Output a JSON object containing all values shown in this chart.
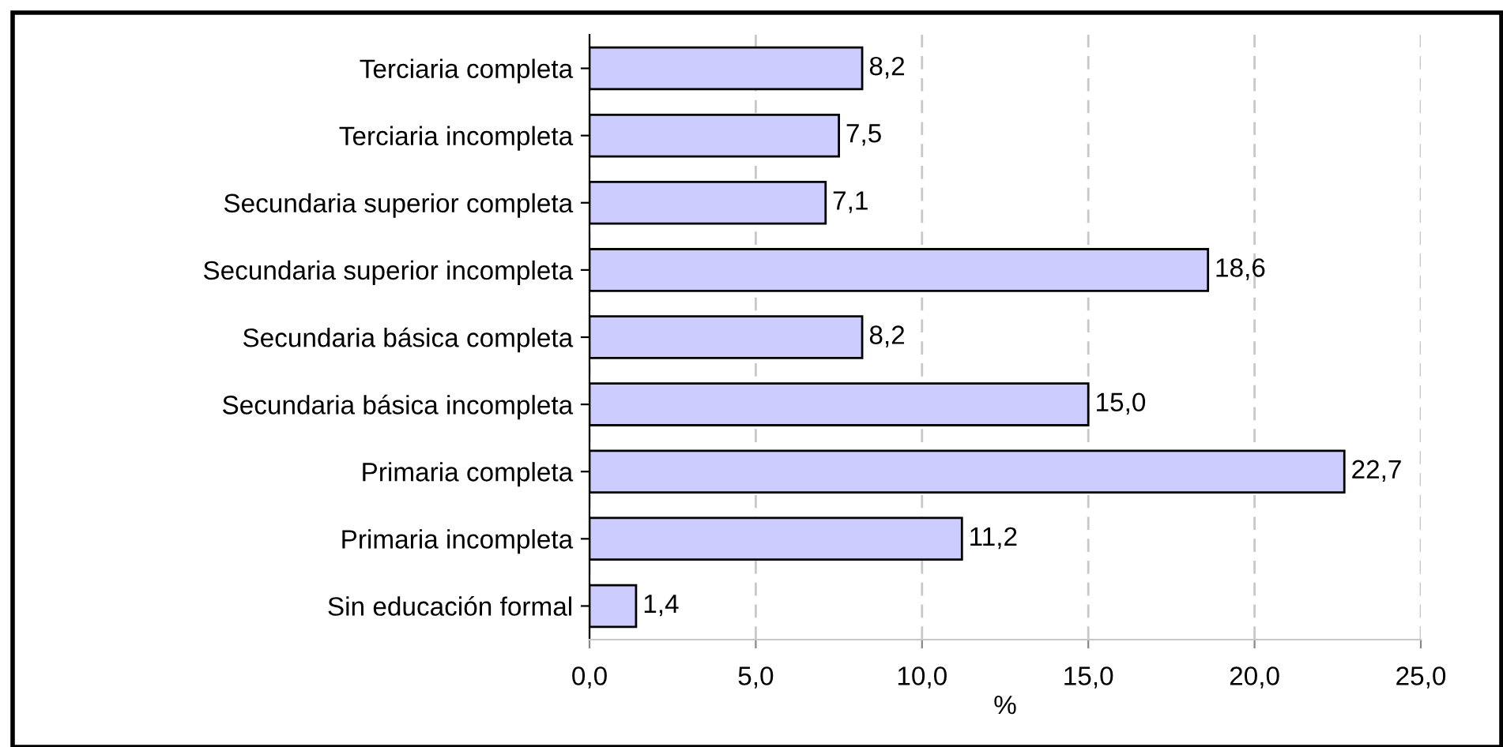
{
  "chart_data": {
    "type": "bar",
    "orientation": "horizontal",
    "xlabel": "%",
    "categories": [
      "Terciaria completa",
      "Terciaria incompleta",
      "Secundaria superior completa",
      "Secundaria superior incompleta",
      "Secundaria básica completa",
      "Secundaria básica incompleta",
      "Primaria completa",
      "Primaria incompleta",
      "Sin educación formal"
    ],
    "values": [
      8.2,
      7.5,
      7.1,
      18.6,
      8.2,
      15.0,
      22.7,
      11.2,
      1.4
    ],
    "value_labels": [
      "8,2",
      "7,5",
      "7,1",
      "18,6",
      "8,2",
      "15,0",
      "22,7",
      "11,2",
      "1,4"
    ],
    "color": "#ccccff",
    "xlim": [
      0,
      25
    ],
    "xticks": [
      {
        "value": 0,
        "label": "0,0"
      },
      {
        "value": 5,
        "label": "5,0"
      },
      {
        "value": 10,
        "label": "10,0"
      },
      {
        "value": 15,
        "label": "15,0"
      },
      {
        "value": 20,
        "label": "20,0"
      },
      {
        "value": 25,
        "label": "25,0"
      }
    ],
    "grid": "x",
    "legend": false
  }
}
